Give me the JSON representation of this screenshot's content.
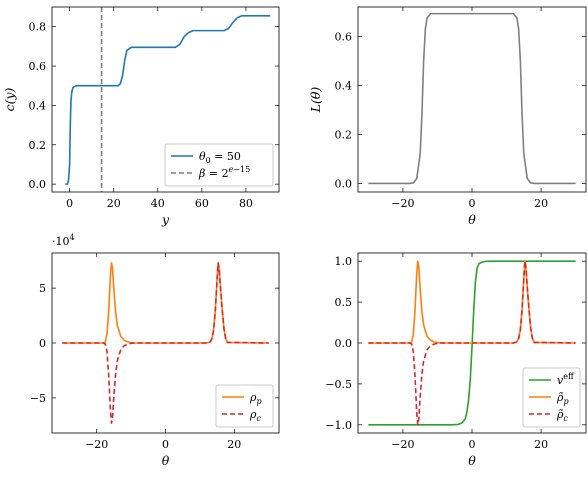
{
  "chart_data": [
    {
      "type": "line",
      "xlabel": "y",
      "ylabel": "c(y)",
      "xlim": [
        -8,
        95
      ],
      "ylim": [
        -0.04,
        0.9
      ],
      "xticks": [
        "0",
        "20",
        "40",
        "60",
        "80"
      ],
      "yticks": [
        "0.0",
        "0.2",
        "0.4",
        "0.6",
        "0.8"
      ],
      "legend_position": "bottom-right",
      "series": [
        {
          "name": "θ₀ = 50",
          "color": "#1f77b4",
          "style": "solid",
          "x": [
            -2,
            -1,
            -0.5,
            0,
            0.3,
            0.6,
            1,
            1.5,
            2,
            3,
            22,
            23,
            24,
            25,
            26,
            28,
            48,
            50,
            52,
            54,
            56,
            70,
            72,
            74,
            76,
            78,
            91
          ],
          "y": [
            0.0,
            0.0,
            0.02,
            0.1,
            0.3,
            0.42,
            0.47,
            0.49,
            0.495,
            0.5,
            0.5,
            0.51,
            0.55,
            0.63,
            0.68,
            0.695,
            0.695,
            0.71,
            0.75,
            0.77,
            0.78,
            0.78,
            0.79,
            0.82,
            0.845,
            0.855,
            0.855
          ]
        },
        {
          "name": "β = 2e^{-15}",
          "color": "#808080",
          "style": "dashed",
          "vertical_x": 14.5
        }
      ]
    },
    {
      "type": "line",
      "xlabel": "θ",
      "ylabel": "L(θ)",
      "xlim": [
        -33,
        33
      ],
      "ylim": [
        -0.035,
        0.72
      ],
      "xticks": [
        "−20",
        "0",
        "20"
      ],
      "yticks": [
        "0.0",
        "0.2",
        "0.4",
        "0.6"
      ],
      "series": [
        {
          "color": "#808080",
          "style": "solid",
          "x": [
            -30,
            -18,
            -17,
            -16,
            -15,
            -14.5,
            -14,
            -13.5,
            -13,
            -12,
            12,
            13,
            13.5,
            14,
            14.5,
            15,
            16,
            17,
            18,
            30
          ],
          "y": [
            0,
            0,
            0.002,
            0.02,
            0.12,
            0.28,
            0.5,
            0.63,
            0.675,
            0.693,
            0.693,
            0.675,
            0.63,
            0.5,
            0.28,
            0.12,
            0.02,
            0.002,
            0,
            0
          ]
        }
      ]
    },
    {
      "type": "line",
      "xlabel": "θ",
      "ylabel": "",
      "scale_label": "·10⁴",
      "xlim": [
        -33,
        33
      ],
      "ylim": [
        -8.2,
        8.2
      ],
      "xticks": [
        "−20",
        "0",
        "20"
      ],
      "yticks": [
        "−5",
        "0",
        "5"
      ],
      "legend_position": "bottom-right",
      "series": [
        {
          "name": "ρ_p",
          "color": "#ff7f0e",
          "style": "solid",
          "x": [
            -30,
            -18,
            -17.5,
            -17,
            -16.5,
            -16,
            -15.7,
            -15.4,
            -15,
            -14.5,
            -14,
            -13,
            -12,
            -11,
            -10,
            -9,
            12,
            13,
            13.5,
            14,
            14.5,
            15,
            15.3,
            15.6,
            16,
            16.5,
            17,
            17.5,
            18,
            30
          ],
          "y": [
            0,
            0,
            0.1,
            0.8,
            3.0,
            6.2,
            7.3,
            6.8,
            4.8,
            2.8,
            1.6,
            0.6,
            0.25,
            0.1,
            0.03,
            0,
            0,
            0.1,
            0.4,
            1.2,
            3.0,
            5.8,
            7.3,
            6.8,
            5.0,
            3.0,
            1.3,
            0.4,
            0.05,
            0
          ]
        },
        {
          "name": "ρ_c",
          "color": "#d62728",
          "style": "dashed",
          "x": [
            -30,
            -18,
            -17.5,
            -17,
            -16.5,
            -16,
            -15.7,
            -15.4,
            -15,
            -14.5,
            -14,
            -13,
            -12,
            -11,
            -10,
            -9,
            12,
            13,
            13.5,
            14,
            14.5,
            15,
            15.3,
            15.6,
            16,
            16.5,
            17,
            17.5,
            18,
            30
          ],
          "y": [
            0,
            0,
            -0.1,
            -0.8,
            -3.0,
            -6.2,
            -7.3,
            -6.8,
            -4.8,
            -2.8,
            -1.6,
            -0.6,
            -0.25,
            -0.1,
            -0.03,
            0,
            0,
            0.1,
            0.4,
            1.2,
            3.0,
            5.8,
            7.3,
            6.8,
            5.0,
            3.0,
            1.3,
            0.4,
            0.05,
            0
          ]
        }
      ]
    },
    {
      "type": "line",
      "xlabel": "θ",
      "ylabel": "",
      "xlim": [
        -33,
        33
      ],
      "ylim": [
        -1.1,
        1.1
      ],
      "xticks": [
        "−20",
        "0",
        "20"
      ],
      "yticks": [
        "−1.0",
        "−0.5",
        "0.0",
        "0.5",
        "1.0"
      ],
      "legend_position": "bottom-right",
      "series": [
        {
          "name": "v^eff",
          "color": "#2ca02c",
          "style": "solid",
          "x": [
            -30,
            -6,
            -4,
            -3,
            -2,
            -1.5,
            -1,
            -0.5,
            0,
            0.5,
            1,
            1.5,
            2,
            3,
            4,
            6,
            30
          ],
          "y": [
            -1,
            -1,
            -0.995,
            -0.98,
            -0.93,
            -0.85,
            -0.7,
            -0.45,
            -0.05,
            0.4,
            0.75,
            0.92,
            0.97,
            0.99,
            0.998,
            1,
            1
          ]
        },
        {
          "name": "ρ̃_p",
          "color": "#ff7f0e",
          "style": "solid",
          "x": [
            -30,
            -18,
            -17.5,
            -17,
            -16.5,
            -16,
            -15.7,
            -15.4,
            -15,
            -14.5,
            -14,
            -13,
            -12,
            -11,
            -10,
            -9,
            12,
            13,
            13.5,
            14,
            14.5,
            15,
            15.3,
            15.6,
            16,
            16.5,
            17,
            17.5,
            18,
            30
          ],
          "y": [
            0,
            0,
            0.01,
            0.1,
            0.4,
            0.85,
            1.0,
            0.93,
            0.66,
            0.38,
            0.22,
            0.08,
            0.035,
            0.014,
            0.004,
            0,
            0,
            0.014,
            0.055,
            0.16,
            0.41,
            0.79,
            1.0,
            0.93,
            0.68,
            0.41,
            0.18,
            0.055,
            0.007,
            0
          ]
        },
        {
          "name": "ρ̃_c",
          "color": "#d62728",
          "style": "dashed",
          "x": [
            -30,
            -18,
            -17.5,
            -17,
            -16.5,
            -16,
            -15.7,
            -15.4,
            -15,
            -14.5,
            -14,
            -13,
            -12,
            -11,
            -10,
            -9,
            12,
            13,
            13.5,
            14,
            14.5,
            15,
            15.3,
            15.6,
            16,
            16.5,
            17,
            17.5,
            18,
            30
          ],
          "y": [
            0,
            0,
            -0.01,
            -0.1,
            -0.4,
            -0.85,
            -1.0,
            -0.93,
            -0.66,
            -0.38,
            -0.22,
            -0.08,
            -0.035,
            -0.014,
            -0.004,
            0,
            0,
            0.014,
            0.055,
            0.16,
            0.41,
            0.79,
            1.0,
            0.93,
            0.68,
            0.41,
            0.18,
            0.055,
            0.007,
            0
          ]
        }
      ]
    }
  ]
}
